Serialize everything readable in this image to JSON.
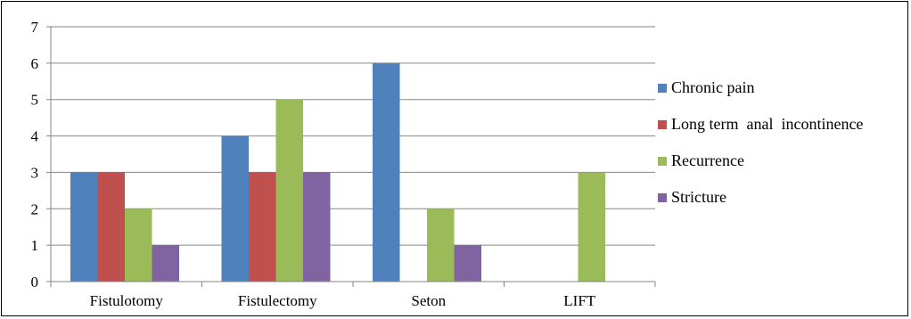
{
  "chart_data": {
    "type": "bar",
    "title": "",
    "xlabel": "",
    "ylabel": "",
    "categories": [
      "Fistulotomy",
      "Fistulectomy",
      "Seton",
      "LIFT"
    ],
    "series": [
      {
        "name": "Chronic pain",
        "color": "#4F81BD",
        "values": [
          3,
          4,
          6,
          0
        ]
      },
      {
        "name": "Long term  anal  incontinence",
        "color": "#C0504D",
        "values": [
          3,
          3,
          0,
          0
        ]
      },
      {
        "name": "Recurrence",
        "color": "#9BBB59",
        "values": [
          2,
          5,
          2,
          3
        ]
      },
      {
        "name": "Stricture",
        "color": "#8064A2",
        "values": [
          1,
          3,
          1,
          0
        ]
      }
    ],
    "ylim": [
      0,
      7
    ],
    "yticks": [
      0,
      1,
      2,
      3,
      4,
      5,
      6,
      7
    ],
    "grid": true,
    "legend": "right"
  }
}
